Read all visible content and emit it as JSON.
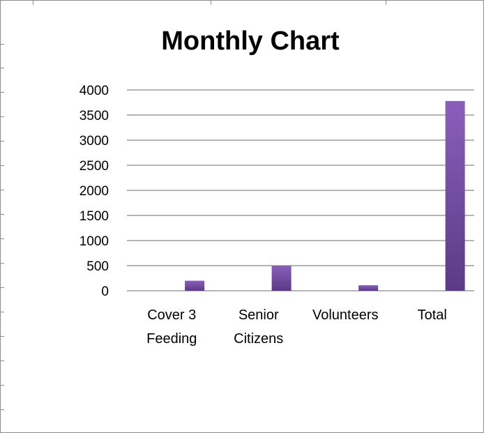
{
  "chart_data": {
    "type": "bar",
    "title": "Monthly Chart",
    "categories": [
      [
        "Cover 3",
        "Feeding"
      ],
      [
        "Senior",
        "Citizens"
      ],
      [
        "Volunteers"
      ],
      [
        "Total"
      ]
    ],
    "series": [
      {
        "values": [
          200,
          500,
          110,
          3780
        ]
      }
    ],
    "ylim": [
      0,
      4000
    ],
    "yticks": [
      0,
      500,
      1000,
      1500,
      2000,
      2500,
      3000,
      3500,
      4000
    ],
    "grid": true,
    "legend": "none",
    "bar_color": "#7b52a8"
  }
}
